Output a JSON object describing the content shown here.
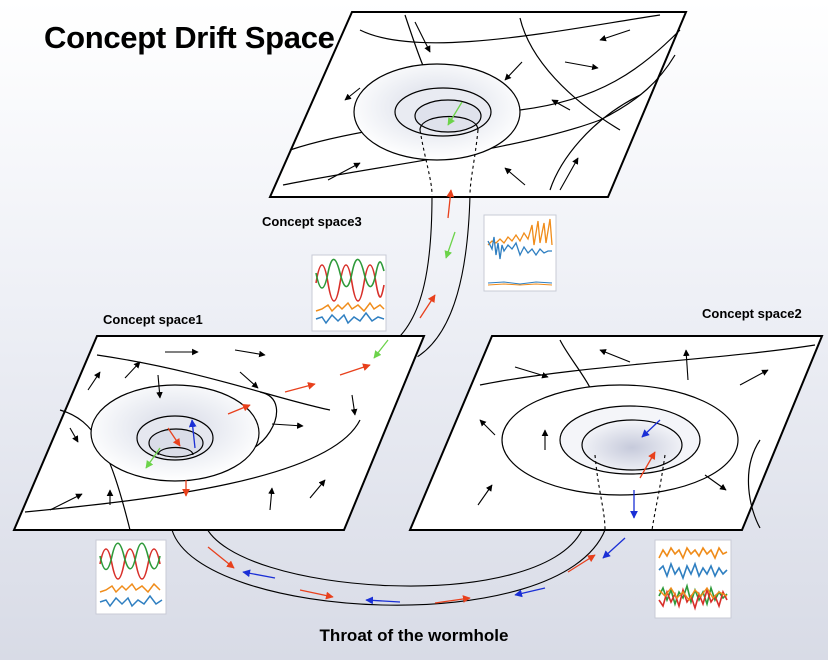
{
  "title": "Concept Drift Space",
  "labels": {
    "space3": "Concept space3",
    "space1": "Concept space1",
    "space2": "Concept space2",
    "throat": "Throat of the wormhole"
  },
  "colors": {
    "drift_red": "#e8401c",
    "drift_blue": "#1a2fd6",
    "drift_green": "#6cd34a",
    "flow_black": "#000000",
    "series_blue": "#2f7fc1",
    "series_orange": "#f08c1a",
    "series_red": "#d8302a",
    "series_green": "#2e9a3a"
  },
  "icons": [
    "time-series-thumbnail",
    "arrow-icon"
  ]
}
